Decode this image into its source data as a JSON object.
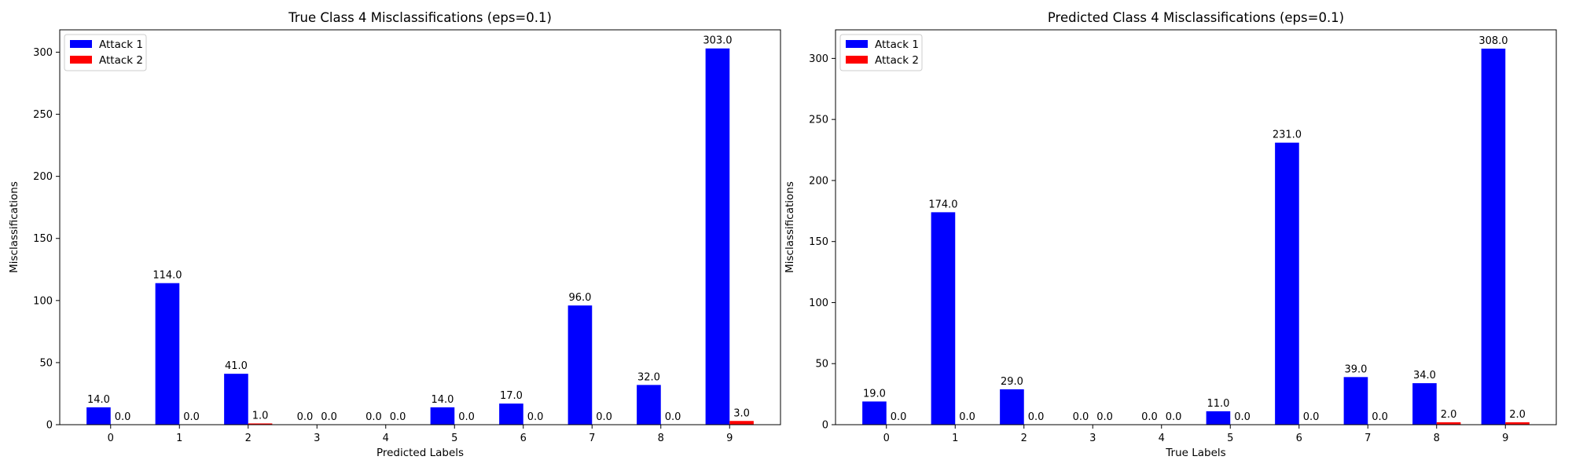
{
  "chart_data": [
    {
      "type": "bar",
      "title": "True Class 4 Misclassifications (eps=0.1)",
      "xlabel": "Predicted Labels",
      "ylabel": "Misclassifications",
      "categories": [
        "0",
        "1",
        "2",
        "3",
        "4",
        "5",
        "6",
        "7",
        "8",
        "9"
      ],
      "series": [
        {
          "name": "Attack 1",
          "color": "#0000ff",
          "values": [
            14,
            114,
            41,
            0,
            0,
            14,
            17,
            96,
            32,
            303
          ]
        },
        {
          "name": "Attack 2",
          "color": "#ff0000",
          "values": [
            0,
            0,
            1,
            0,
            0,
            0,
            0,
            0,
            0,
            3
          ]
        }
      ],
      "ylim": [
        0,
        318
      ],
      "yticks": [
        0,
        50,
        100,
        150,
        200,
        250,
        300
      ],
      "grid": false,
      "legend": "top-left"
    },
    {
      "type": "bar",
      "title": "Predicted Class 4 Misclassifications (eps=0.1)",
      "xlabel": "True Labels",
      "ylabel": "Misclassifications",
      "categories": [
        "0",
        "1",
        "2",
        "3",
        "4",
        "5",
        "6",
        "7",
        "8",
        "9"
      ],
      "series": [
        {
          "name": "Attack 1",
          "color": "#0000ff",
          "values": [
            19,
            174,
            29,
            0,
            0,
            11,
            231,
            39,
            34,
            308
          ]
        },
        {
          "name": "Attack 2",
          "color": "#ff0000",
          "values": [
            0,
            0,
            0,
            0,
            0,
            0,
            0,
            0,
            2,
            2
          ]
        }
      ],
      "ylim": [
        0,
        323.4
      ],
      "yticks": [
        0,
        50,
        100,
        150,
        200,
        250,
        300
      ],
      "grid": false,
      "legend": "top-left"
    }
  ]
}
